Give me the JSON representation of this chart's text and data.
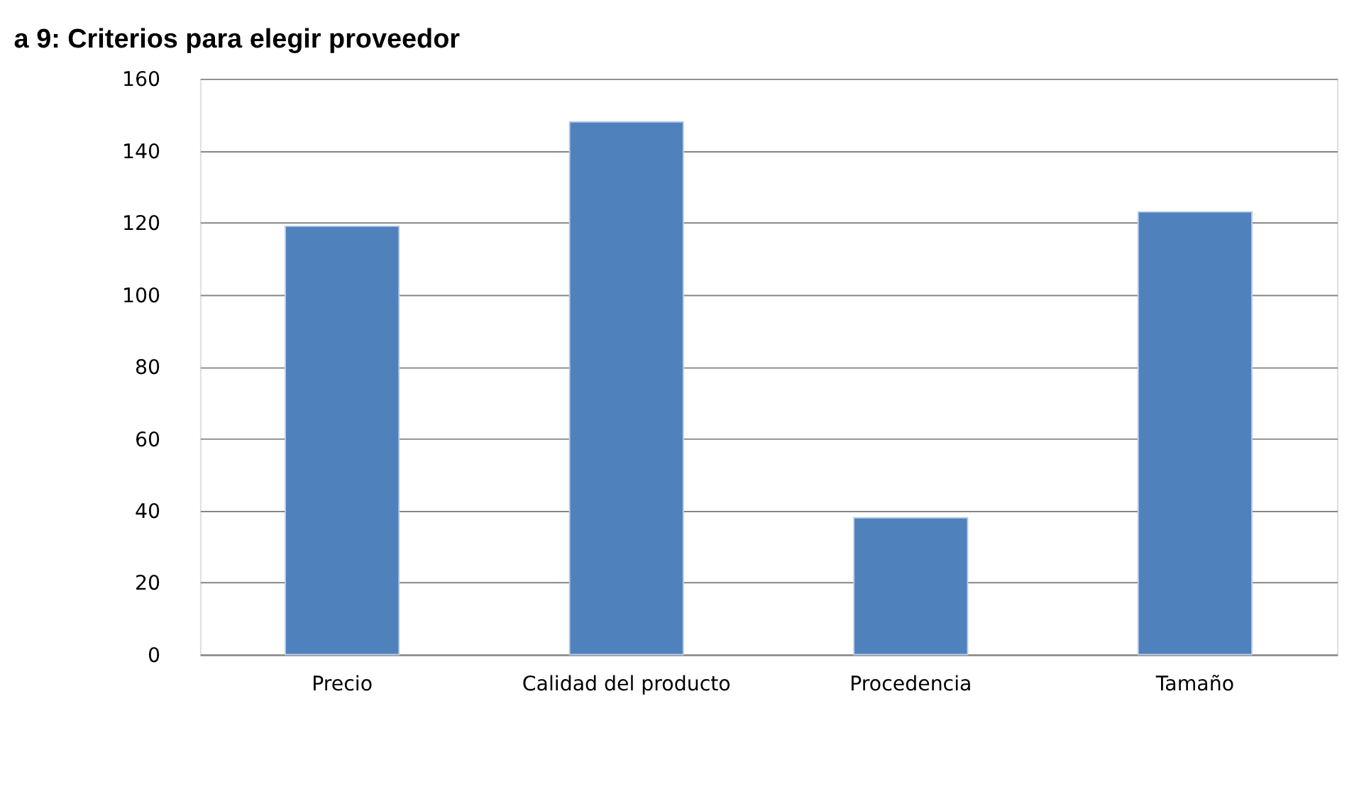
{
  "chart_data": {
    "type": "bar",
    "title": "a 9: Criterios para elegir proveedor",
    "categories": [
      "Precio",
      "Calidad del producto",
      "Procedencia",
      "Tamaño"
    ],
    "values": [
      119,
      148,
      38,
      123
    ],
    "color": "#4f81bd",
    "ylim": [
      0,
      160
    ],
    "yticks": [
      0,
      20,
      40,
      60,
      80,
      100,
      120,
      140,
      160
    ],
    "grid": "y"
  }
}
